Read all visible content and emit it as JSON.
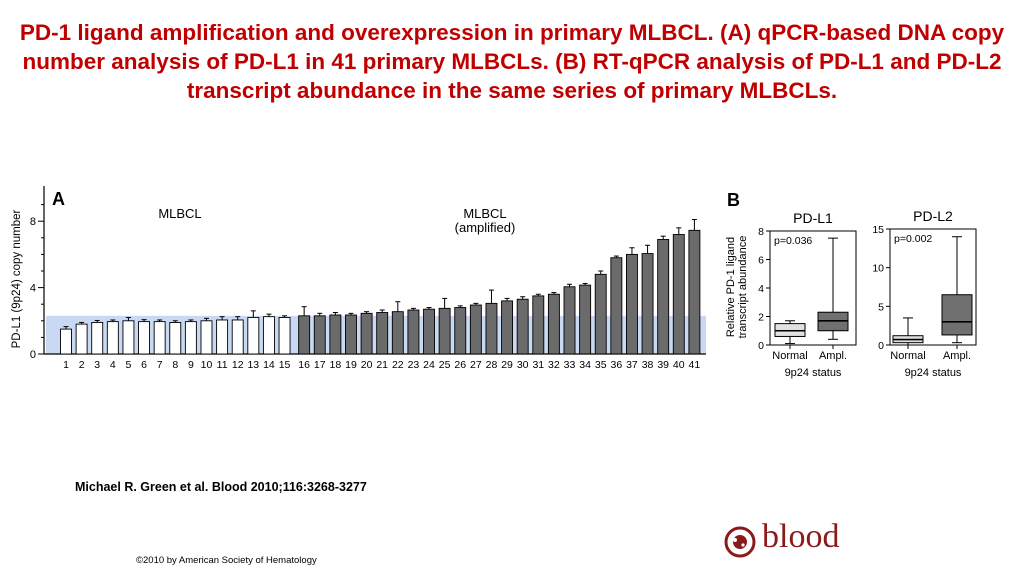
{
  "slide": {
    "title": "PD-1 ligand amplification and overexpression in primary MLBCL. (A) qPCR-based DNA copy number analysis of PD-L1 in 41 primary MLBCLs. (B) RT-qPCR analysis of PD-L1 and PD-L2 transcript abundance in the same series of primary MLBCLs.",
    "citation": "Michael R. Green et al. Blood 2010;116:3268-3277",
    "copyright": "©2010 by American Society of Hematology",
    "logo_text": "blood"
  },
  "colors": {
    "title": "#c00000",
    "white_bar": "#ffffff",
    "gray_bar": "#6b6b6b",
    "shade": "#c9d9f3",
    "normal_box": "#e2e2e2",
    "ampl_box": "#707070",
    "logo": "#8b1a1a"
  },
  "chart_data": [
    {
      "type": "bar",
      "panel": "A",
      "ylabel": "PD-L1 (9p24) copy number",
      "ylim": [
        0,
        9
      ],
      "yticks": [
        0,
        4,
        8
      ],
      "group_labels": [
        "MLBCL",
        "MLBCL\n(amplified)"
      ],
      "shaded_below": 2.3,
      "categories": [
        "1",
        "2",
        "3",
        "4",
        "5",
        "6",
        "7",
        "8",
        "9",
        "10",
        "11",
        "12",
        "13",
        "14",
        "15",
        "16",
        "17",
        "18",
        "19",
        "20",
        "21",
        "22",
        "23",
        "24",
        "25",
        "26",
        "27",
        "28",
        "29",
        "30",
        "31",
        "32",
        "33",
        "34",
        "35",
        "36",
        "37",
        "38",
        "39",
        "40",
        "41"
      ],
      "values": [
        1.5,
        1.8,
        1.9,
        1.95,
        2.0,
        1.95,
        1.95,
        1.9,
        1.95,
        2.0,
        2.05,
        2.05,
        2.2,
        2.25,
        2.2,
        2.3,
        2.3,
        2.35,
        2.35,
        2.45,
        2.5,
        2.55,
        2.65,
        2.7,
        2.75,
        2.8,
        2.95,
        3.05,
        3.2,
        3.3,
        3.5,
        3.6,
        4.05,
        4.15,
        4.8,
        5.8,
        6.0,
        6.05,
        6.9,
        7.2,
        7.45
      ],
      "errors": [
        0.15,
        0.1,
        0.12,
        0.1,
        0.2,
        0.12,
        0.1,
        0.1,
        0.1,
        0.15,
        0.2,
        0.2,
        0.4,
        0.15,
        0.1,
        0.55,
        0.15,
        0.15,
        0.1,
        0.1,
        0.15,
        0.6,
        0.1,
        0.1,
        0.6,
        0.1,
        0.1,
        0.8,
        0.15,
        0.15,
        0.1,
        0.1,
        0.15,
        0.1,
        0.2,
        0.1,
        0.4,
        0.5,
        0.2,
        0.4,
        0.65
      ],
      "series": [
        {
          "color_key": "white_bar",
          "range": [
            1,
            15
          ]
        },
        {
          "color_key": "gray_bar",
          "range": [
            16,
            41
          ]
        }
      ]
    },
    {
      "type": "box",
      "panel": "B",
      "title": "PD-L1",
      "pvalue": "p=0.036",
      "ylabel": "Relative PD-1 ligand\ntranscript abundance",
      "xlabel": "9p24 status",
      "ylim": [
        0,
        8
      ],
      "yticks": [
        0,
        2,
        4,
        6,
        8
      ],
      "categories": [
        "Normal",
        "Ampl."
      ],
      "boxes": [
        {
          "min": 0.1,
          "q1": 0.6,
          "median": 1.0,
          "q3": 1.5,
          "max": 1.7
        },
        {
          "min": 0.4,
          "q1": 1.0,
          "median": 1.7,
          "q3": 2.3,
          "max": 7.5
        }
      ]
    },
    {
      "type": "box",
      "panel": "B",
      "title": "PD-L2",
      "pvalue": "p=0.002",
      "xlabel": "9p24 status",
      "ylim": [
        0,
        15
      ],
      "yticks": [
        0,
        5,
        10,
        15
      ],
      "categories": [
        "Normal",
        "Ampl."
      ],
      "boxes": [
        {
          "min": 0.0,
          "q1": 0.3,
          "median": 0.7,
          "q3": 1.2,
          "max": 3.5
        },
        {
          "min": 0.3,
          "q1": 1.3,
          "median": 3.0,
          "q3": 6.5,
          "max": 14.0
        }
      ]
    }
  ]
}
